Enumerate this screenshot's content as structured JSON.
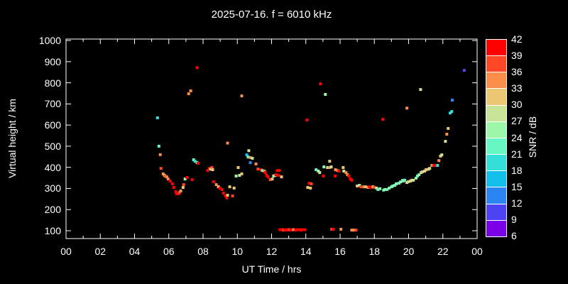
{
  "title": "2025-07-16. f = 6010 kHz",
  "chart_data": {
    "type": "scatter",
    "title": "2025-07-16. f = 6010 kHz",
    "xlabel": "UT Time / hrs",
    "ylabel": "Virtual height / km",
    "background": "#000000",
    "axis_color": "#ffffff",
    "grid": false,
    "xlim": [
      0,
      24
    ],
    "ylim": [
      63,
      1007
    ],
    "x_major_tick_hours": [
      0,
      2,
      4,
      6,
      8,
      10,
      12,
      14,
      16,
      18,
      20,
      22,
      24
    ],
    "x_major_tick_labels": [
      "00",
      "02",
      "04",
      "06",
      "08",
      "10",
      "12",
      "14",
      "16",
      "18",
      "20",
      "22",
      "00"
    ],
    "x_minor_tick_hours": [
      1,
      3,
      5,
      7,
      9,
      11,
      13,
      15,
      17,
      19,
      21,
      23
    ],
    "y_tick_values": [
      100,
      200,
      300,
      400,
      500,
      600,
      700,
      800,
      900,
      1000
    ],
    "y_tick_labels": [
      "100",
      "200",
      "300",
      "400",
      "500",
      "600",
      "700",
      "800",
      "900",
      "1000"
    ],
    "colorbar": {
      "label": "SNR / dB",
      "min": 6,
      "max": 42,
      "step": 3,
      "tick_labels": [
        "42",
        "39",
        "36",
        "33",
        "30",
        "27",
        "24",
        "21",
        "18",
        "15",
        "12",
        "9",
        "6"
      ],
      "colors_low_to_high": [
        "#7a00e8",
        "#4d43f2",
        "#2c85f2",
        "#12bfe8",
        "#33dfd8",
        "#66f7c2",
        "#9cf7a8",
        "#c6e398",
        "#edc673",
        "#fb8d4a",
        "#ff4726",
        "#ff0000"
      ]
    },
    "points_format": [
      "ut_hour",
      "virtual_height_km",
      "snr_db"
    ],
    "points": [
      [
        5.34,
        634,
        19
      ],
      [
        5.42,
        500,
        22
      ],
      [
        5.5,
        460,
        34
      ],
      [
        5.54,
        395,
        37
      ],
      [
        5.67,
        369,
        34
      ],
      [
        5.75,
        362,
        31
      ],
      [
        5.79,
        358,
        37
      ],
      [
        5.88,
        355,
        34
      ],
      [
        5.96,
        345,
        34
      ],
      [
        6.08,
        335,
        41
      ],
      [
        6.21,
        322,
        41
      ],
      [
        6.29,
        305,
        41
      ],
      [
        6.41,
        285,
        41
      ],
      [
        6.45,
        275,
        41
      ],
      [
        6.58,
        275,
        41
      ],
      [
        6.62,
        281,
        37
      ],
      [
        6.7,
        288,
        34
      ],
      [
        6.83,
        305,
        31
      ],
      [
        6.87,
        318,
        37
      ],
      [
        6.95,
        345,
        25
      ],
      [
        7.07,
        352,
        41
      ],
      [
        7.16,
        748,
        34
      ],
      [
        7.28,
        762,
        34
      ],
      [
        7.36,
        342,
        41
      ],
      [
        7.45,
        436,
        22
      ],
      [
        7.53,
        429,
        19
      ],
      [
        7.65,
        422,
        22
      ],
      [
        7.65,
        872,
        41
      ],
      [
        7.7,
        419,
        41
      ],
      [
        8.27,
        385,
        41
      ],
      [
        8.36,
        395,
        41
      ],
      [
        8.44,
        392,
        28
      ],
      [
        8.52,
        399,
        37
      ],
      [
        8.56,
        389,
        31
      ],
      [
        8.61,
        332,
        41
      ],
      [
        8.77,
        318,
        34
      ],
      [
        8.9,
        308,
        31
      ],
      [
        8.98,
        302,
        41
      ],
      [
        9.1,
        295,
        41
      ],
      [
        9.19,
        278,
        41
      ],
      [
        9.31,
        265,
        41
      ],
      [
        9.39,
        255,
        41
      ],
      [
        9.43,
        268,
        31
      ],
      [
        9.56,
        308,
        31
      ],
      [
        9.72,
        265,
        37
      ],
      [
        9.81,
        302,
        31
      ],
      [
        9.93,
        359,
        25
      ],
      [
        10.05,
        399,
        31
      ],
      [
        10.13,
        362,
        28
      ],
      [
        10.26,
        369,
        31
      ],
      [
        10.26,
        738,
        34
      ],
      [
        9.43,
        515,
        34
      ],
      [
        10.55,
        459,
        16
      ],
      [
        10.63,
        449,
        22
      ],
      [
        10.67,
        479,
        28
      ],
      [
        10.76,
        446,
        34
      ],
      [
        10.76,
        422,
        13
      ],
      [
        10.88,
        443,
        28
      ],
      [
        11.09,
        416,
        34
      ],
      [
        11.21,
        392,
        37
      ],
      [
        11.38,
        389,
        41
      ],
      [
        11.46,
        385,
        22
      ],
      [
        11.58,
        382,
        34
      ],
      [
        11.63,
        375,
        41
      ],
      [
        11.71,
        362,
        41
      ],
      [
        11.79,
        355,
        41
      ],
      [
        11.92,
        342,
        37
      ],
      [
        12.04,
        345,
        31
      ],
      [
        12.12,
        359,
        25
      ],
      [
        12.21,
        362,
        28
      ],
      [
        12.25,
        365,
        41
      ],
      [
        12.33,
        385,
        41
      ],
      [
        12.45,
        385,
        41
      ],
      [
        12.41,
        362,
        41
      ],
      [
        12.58,
        355,
        31
      ],
      [
        12.49,
        105,
        41
      ],
      [
        12.61,
        105,
        41
      ],
      [
        12.7,
        103,
        37
      ],
      [
        12.78,
        105,
        41
      ],
      [
        12.86,
        103,
        41
      ],
      [
        12.95,
        105,
        41
      ],
      [
        13.03,
        105,
        37
      ],
      [
        13.12,
        103,
        41
      ],
      [
        13.2,
        105,
        41
      ],
      [
        13.28,
        105,
        34
      ],
      [
        13.4,
        103,
        41
      ],
      [
        13.49,
        105,
        41
      ],
      [
        13.61,
        105,
        41
      ],
      [
        13.7,
        103,
        41
      ],
      [
        13.82,
        105,
        41
      ],
      [
        13.94,
        105,
        41
      ],
      [
        14.07,
        624,
        41
      ],
      [
        14.11,
        305,
        31
      ],
      [
        14.19,
        325,
        41
      ],
      [
        14.27,
        302,
        31
      ],
      [
        14.32,
        322,
        37
      ],
      [
        14.6,
        389,
        22
      ],
      [
        14.73,
        382,
        25
      ],
      [
        14.81,
        375,
        28
      ],
      [
        14.85,
        795,
        41
      ],
      [
        15.02,
        359,
        41
      ],
      [
        15.06,
        402,
        25
      ],
      [
        15.14,
        745,
        25
      ],
      [
        15.27,
        399,
        28
      ],
      [
        15.39,
        429,
        31
      ],
      [
        15.39,
        399,
        34
      ],
      [
        15.48,
        402,
        28
      ],
      [
        15.51,
        107,
        37
      ],
      [
        15.6,
        107,
        41
      ],
      [
        15.72,
        359,
        41
      ],
      [
        15.73,
        389,
        34
      ],
      [
        15.85,
        385,
        34
      ],
      [
        15.93,
        382,
        41
      ],
      [
        16.05,
        107,
        34
      ],
      [
        16.18,
        399,
        31
      ],
      [
        16.22,
        382,
        28
      ],
      [
        16.35,
        375,
        34
      ],
      [
        16.43,
        365,
        34
      ],
      [
        16.51,
        359,
        41
      ],
      [
        16.6,
        345,
        41
      ],
      [
        16.68,
        339,
        41
      ],
      [
        16.68,
        103,
        34
      ],
      [
        16.76,
        103,
        34
      ],
      [
        16.85,
        103,
        34
      ],
      [
        16.93,
        103,
        37
      ],
      [
        17.0,
        312,
        31
      ],
      [
        17.13,
        315,
        25
      ],
      [
        17.21,
        308,
        37
      ],
      [
        17.38,
        308,
        34
      ],
      [
        17.5,
        308,
        31
      ],
      [
        17.63,
        305,
        34
      ],
      [
        17.71,
        308,
        41
      ],
      [
        17.79,
        305,
        41
      ],
      [
        17.92,
        308,
        31
      ],
      [
        18.0,
        305,
        37
      ],
      [
        18.13,
        302,
        28
      ],
      [
        18.21,
        295,
        22
      ],
      [
        18.33,
        299,
        25
      ],
      [
        18.49,
        627,
        41
      ],
      [
        18.54,
        292,
        22
      ],
      [
        18.62,
        295,
        25
      ],
      [
        18.75,
        295,
        22
      ],
      [
        18.87,
        302,
        25
      ],
      [
        19.0,
        308,
        22
      ],
      [
        19.08,
        312,
        25
      ],
      [
        19.2,
        315,
        22
      ],
      [
        19.28,
        322,
        25
      ],
      [
        19.44,
        325,
        22
      ],
      [
        19.53,
        331,
        25
      ],
      [
        19.65,
        338,
        28
      ],
      [
        19.69,
        335,
        22
      ],
      [
        19.77,
        339,
        22
      ],
      [
        19.9,
        328,
        28
      ],
      [
        19.9,
        680,
        34
      ],
      [
        19.98,
        332,
        31
      ],
      [
        20.11,
        335,
        28
      ],
      [
        20.19,
        339,
        31
      ],
      [
        20.28,
        339,
        28
      ],
      [
        20.44,
        349,
        25
      ],
      [
        20.52,
        359,
        22
      ],
      [
        20.61,
        365,
        25
      ],
      [
        20.7,
        768,
        28
      ],
      [
        20.73,
        375,
        28
      ],
      [
        20.81,
        379,
        31
      ],
      [
        20.94,
        382,
        28
      ],
      [
        21.02,
        389,
        31
      ],
      [
        21.15,
        391,
        31
      ],
      [
        21.23,
        395,
        28
      ],
      [
        21.36,
        409,
        34
      ],
      [
        21.48,
        409,
        41
      ],
      [
        21.56,
        409,
        41
      ],
      [
        21.69,
        409,
        19
      ],
      [
        21.77,
        432,
        34
      ],
      [
        21.86,
        453,
        31
      ],
      [
        21.94,
        459,
        28
      ],
      [
        22.15,
        523,
        28
      ],
      [
        22.23,
        557,
        34
      ],
      [
        22.31,
        584,
        31
      ],
      [
        22.43,
        657,
        19
      ],
      [
        22.52,
        664,
        19
      ],
      [
        22.55,
        718,
        13
      ],
      [
        23.25,
        859,
        10
      ]
    ]
  }
}
